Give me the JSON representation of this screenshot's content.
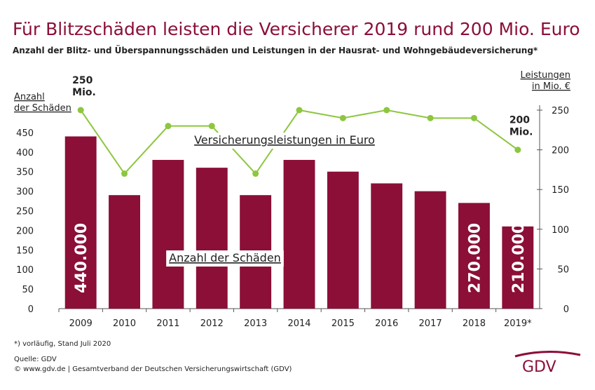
{
  "chart_data": {
    "type": "bar",
    "title": "Für Blitzschäden leisten die Versicherer 2019 rund 200 Mio. Euro",
    "subtitle": "Anzahl der Blitz- und Überspannungsschäden und Leistungen in der Hausrat- und Wohngebäudeversicherung*",
    "ylabel": [
      "Anzahl",
      "der Schäden"
    ],
    "y2label": [
      "Leistungen",
      "in Mio. €"
    ],
    "categories": [
      "2009",
      "2010",
      "2011",
      "2012",
      "2013",
      "2014",
      "2015",
      "2016",
      "2017",
      "2018",
      "2019*"
    ],
    "series": [
      {
        "name": "Anzahl der Schäden",
        "type": "bar",
        "color": "#8b0f37",
        "values": [
          440,
          290,
          380,
          360,
          290,
          380,
          350,
          320,
          300,
          270,
          210
        ],
        "value_labels": [
          "440.000",
          null,
          null,
          null,
          null,
          null,
          null,
          null,
          null,
          "270.000",
          "210.000"
        ]
      },
      {
        "name": "Versicherungsleistungen in Euro",
        "type": "line",
        "axis": "y2",
        "color": "#8dc63f",
        "values": [
          250,
          170,
          230,
          230,
          170,
          250,
          240,
          250,
          240,
          240,
          200
        ],
        "value_labels": [
          "250 Mio.",
          null,
          null,
          null,
          null,
          null,
          null,
          null,
          null,
          null,
          "200 Mio."
        ]
      }
    ],
    "ylim": [
      0,
      500
    ],
    "yticks": [
      0,
      50,
      100,
      150,
      200,
      250,
      300,
      350,
      400,
      450
    ],
    "y2lim": [
      0,
      250
    ],
    "y2ticks": [
      0,
      50,
      100,
      150,
      200,
      250
    ],
    "grid": false,
    "footnote": "*) vorläufig, Stand Juli 2020",
    "source": "Quelle: GDV",
    "copyright": "© www.gdv.de | Gesamtverband der Deutschen Versicherungswirtschaft (GDV)",
    "logo": "GDV"
  }
}
